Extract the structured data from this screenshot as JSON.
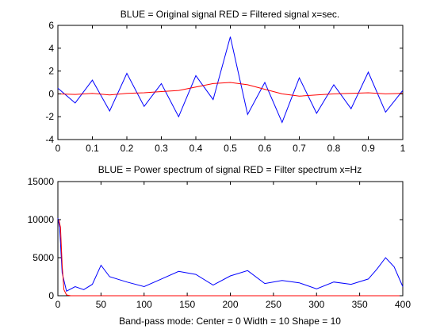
{
  "figure": {
    "top_title": "BLUE = Original signal        RED = Filtered signal    x=sec.",
    "bottom_title": "BLUE = Power spectrum of signal      RED = Filter spectrum     x=Hz",
    "status_line": "Band-pass mode:   Center = 0    Width = 10     Shape =  10"
  },
  "colors": {
    "blue": "#0000ff",
    "red": "#ff0000",
    "axes": "#000000",
    "background": "#ffffff"
  },
  "chart_data": [
    {
      "type": "line",
      "title": "BLUE = Original signal        RED = Filtered signal    x=sec.",
      "xlabel": "",
      "ylabel": "",
      "xlim": [
        0,
        1
      ],
      "ylim": [
        -4,
        6
      ],
      "xticks": [
        "0",
        "0.1",
        "0.2",
        "0.3",
        "0.4",
        "0.5",
        "0.6",
        "0.7",
        "0.8",
        "0.9",
        "1"
      ],
      "yticks": [
        "-4",
        "-2",
        "0",
        "2",
        "4",
        "6"
      ],
      "series": [
        {
          "color": "blue",
          "note_visible": "noisy signal, approx ±2, spike ~5 near x=0.5",
          "x": [
            0,
            0.05,
            0.1,
            0.15,
            0.2,
            0.25,
            0.3,
            0.35,
            0.4,
            0.45,
            0.5,
            0.55,
            0.6,
            0.65,
            0.7,
            0.75,
            0.8,
            0.85,
            0.9,
            0.95,
            1
          ],
          "values": [
            0.5,
            -0.8,
            1.2,
            -1.5,
            1.8,
            -1.1,
            0.9,
            -2.0,
            1.6,
            -0.5,
            5.0,
            -1.8,
            1.0,
            -2.5,
            1.4,
            -1.7,
            0.8,
            -1.3,
            1.9,
            -1.6,
            0.3
          ]
        },
        {
          "color": "red",
          "x": [
            0,
            0.05,
            0.1,
            0.15,
            0.2,
            0.25,
            0.3,
            0.35,
            0.4,
            0.45,
            0.5,
            0.55,
            0.6,
            0.65,
            0.7,
            0.75,
            0.8,
            0.85,
            0.9,
            0.95,
            1
          ],
          "values": [
            0,
            -0.05,
            0.05,
            -0.1,
            0.05,
            0.1,
            0.2,
            0.3,
            0.6,
            0.9,
            1.0,
            0.8,
            0.4,
            0.0,
            -0.2,
            -0.1,
            0.0,
            0.05,
            0.1,
            0.0,
            0.05
          ]
        }
      ]
    },
    {
      "type": "line",
      "title": "BLUE = Power spectrum of signal      RED = Filter spectrum     x=Hz",
      "xlabel": "",
      "ylabel": "",
      "xlim": [
        0,
        400
      ],
      "ylim": [
        0,
        15000
      ],
      "xticks": [
        "0",
        "50",
        "100",
        "150",
        "200",
        "250",
        "300",
        "350",
        "400"
      ],
      "yticks": [
        "0",
        "5000",
        "10000",
        "15000"
      ],
      "series": [
        {
          "color": "blue",
          "x": [
            0,
            2,
            5,
            10,
            20,
            30,
            40,
            50,
            60,
            80,
            100,
            120,
            140,
            160,
            180,
            200,
            220,
            240,
            260,
            280,
            300,
            320,
            340,
            360,
            370,
            380,
            390,
            400
          ],
          "values": [
            10200,
            9000,
            3000,
            600,
            1200,
            800,
            1500,
            4000,
            2500,
            1800,
            1200,
            2200,
            3200,
            2800,
            1400,
            2600,
            3300,
            1600,
            2000,
            1700,
            900,
            1800,
            1500,
            2200,
            3500,
            5000,
            3800,
            1200
          ]
        },
        {
          "color": "red",
          "x": [
            0,
            1,
            3,
            5,
            7,
            10,
            15,
            400
          ],
          "values": [
            10000,
            10000,
            9000,
            4000,
            800,
            100,
            0,
            0
          ]
        }
      ]
    }
  ]
}
